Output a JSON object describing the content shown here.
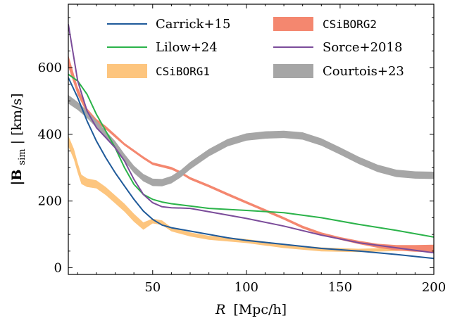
{
  "chart_data": {
    "type": "line",
    "xlabel_main": "R",
    "xlabel_unit": "[Mpc/h]",
    "ylabel_main": "|B",
    "ylabel_sub": "sim",
    "ylabel_unit": "| [km/s]",
    "xlim": [
      5,
      200
    ],
    "ylim": [
      -20,
      790
    ],
    "x_ticks": [
      50,
      100,
      150,
      200
    ],
    "y_ticks": [
      0,
      200,
      400,
      600
    ],
    "legend_placement": "top",
    "series": [
      {
        "name": "Carrick+15",
        "kind": "line",
        "color": "#1f5a9a",
        "mono": false,
        "x": [
          5,
          10,
          15,
          20,
          25,
          30,
          35,
          40,
          45,
          50,
          55,
          60,
          70,
          80,
          90,
          100,
          120,
          140,
          160,
          180,
          200
        ],
        "y": [
          570,
          510,
          440,
          380,
          330,
          285,
          245,
          205,
          170,
          145,
          128,
          120,
          110,
          100,
          90,
          82,
          70,
          58,
          50,
          40,
          28
        ]
      },
      {
        "name": "Lilow+24",
        "kind": "line",
        "color": "#2bb34a",
        "mono": false,
        "x": [
          5,
          10,
          15,
          20,
          25,
          30,
          35,
          40,
          45,
          50,
          55,
          60,
          70,
          80,
          100,
          120,
          140,
          160,
          180,
          200
        ],
        "y": [
          580,
          560,
          520,
          460,
          410,
          360,
          300,
          250,
          220,
          205,
          197,
          192,
          185,
          178,
          172,
          165,
          150,
          130,
          112,
          92
        ]
      },
      {
        "name": "CSiBORG1",
        "kind": "band",
        "color": "#fdc57e",
        "mono": true,
        "x": [
          5,
          8,
          10,
          12,
          15,
          20,
          25,
          30,
          35,
          40,
          45,
          50,
          55,
          60,
          70,
          80,
          100,
          120,
          140,
          160,
          180,
          200
        ],
        "y": [
          380,
          340,
          300,
          265,
          255,
          250,
          230,
          205,
          180,
          150,
          125,
          140,
          135,
          115,
          100,
          90,
          80,
          65,
          55,
          52,
          55,
          60
        ],
        "width": [
          32,
          32,
          30,
          28,
          26,
          24,
          24,
          24,
          24,
          24,
          22,
          14,
          14,
          12,
          12,
          12,
          12,
          12,
          12,
          10,
          10,
          10
        ]
      },
      {
        "name": "CSiBORG2",
        "kind": "band",
        "color": "#f4876f",
        "mono": true,
        "x": [
          5,
          10,
          15,
          20,
          25,
          30,
          35,
          40,
          45,
          50,
          55,
          60,
          65,
          70,
          80,
          90,
          100,
          110,
          120,
          130,
          140,
          150,
          160,
          170,
          180,
          190,
          200
        ],
        "y": [
          620,
          530,
          470,
          440,
          420,
          395,
          370,
          350,
          330,
          312,
          305,
          298,
          285,
          268,
          245,
          220,
          196,
          172,
          148,
          122,
          102,
          88,
          76,
          66,
          60,
          58,
          58
        ],
        "width": [
          36,
          24,
          16,
          12,
          10,
          10,
          8,
          8,
          8,
          8,
          8,
          8,
          8,
          8,
          8,
          8,
          8,
          8,
          8,
          8,
          8,
          8,
          10,
          12,
          16,
          20,
          22
        ]
      },
      {
        "name": "Sorce+2018",
        "kind": "line",
        "color": "#7b4c9a",
        "mono": false,
        "x": [
          5,
          10,
          15,
          20,
          25,
          30,
          35,
          40,
          45,
          50,
          55,
          60,
          70,
          80,
          100,
          120,
          140,
          160,
          180,
          200
        ],
        "y": [
          730,
          560,
          470,
          420,
          390,
          360,
          320,
          265,
          220,
          195,
          183,
          180,
          178,
          168,
          148,
          125,
          98,
          75,
          60,
          45
        ]
      },
      {
        "name": "Courtois+23",
        "kind": "band",
        "color": "#a6a6a6",
        "mono": false,
        "x": [
          5,
          10,
          15,
          20,
          25,
          30,
          35,
          40,
          45,
          50,
          55,
          60,
          65,
          70,
          80,
          90,
          100,
          110,
          120,
          130,
          140,
          150,
          160,
          170,
          180,
          190,
          200
        ],
        "y": [
          505,
          485,
          460,
          430,
          400,
          370,
          330,
          295,
          270,
          256,
          255,
          264,
          282,
          306,
          345,
          375,
          392,
          398,
          400,
          395,
          377,
          350,
          322,
          298,
          283,
          278,
          277
        ],
        "width": [
          26,
          24,
          22,
          20,
          20,
          20,
          22,
          22,
          22,
          22,
          22,
          22,
          22,
          22,
          22,
          22,
          22,
          22,
          22,
          22,
          22,
          22,
          22,
          22,
          22,
          22,
          22
        ]
      }
    ]
  }
}
